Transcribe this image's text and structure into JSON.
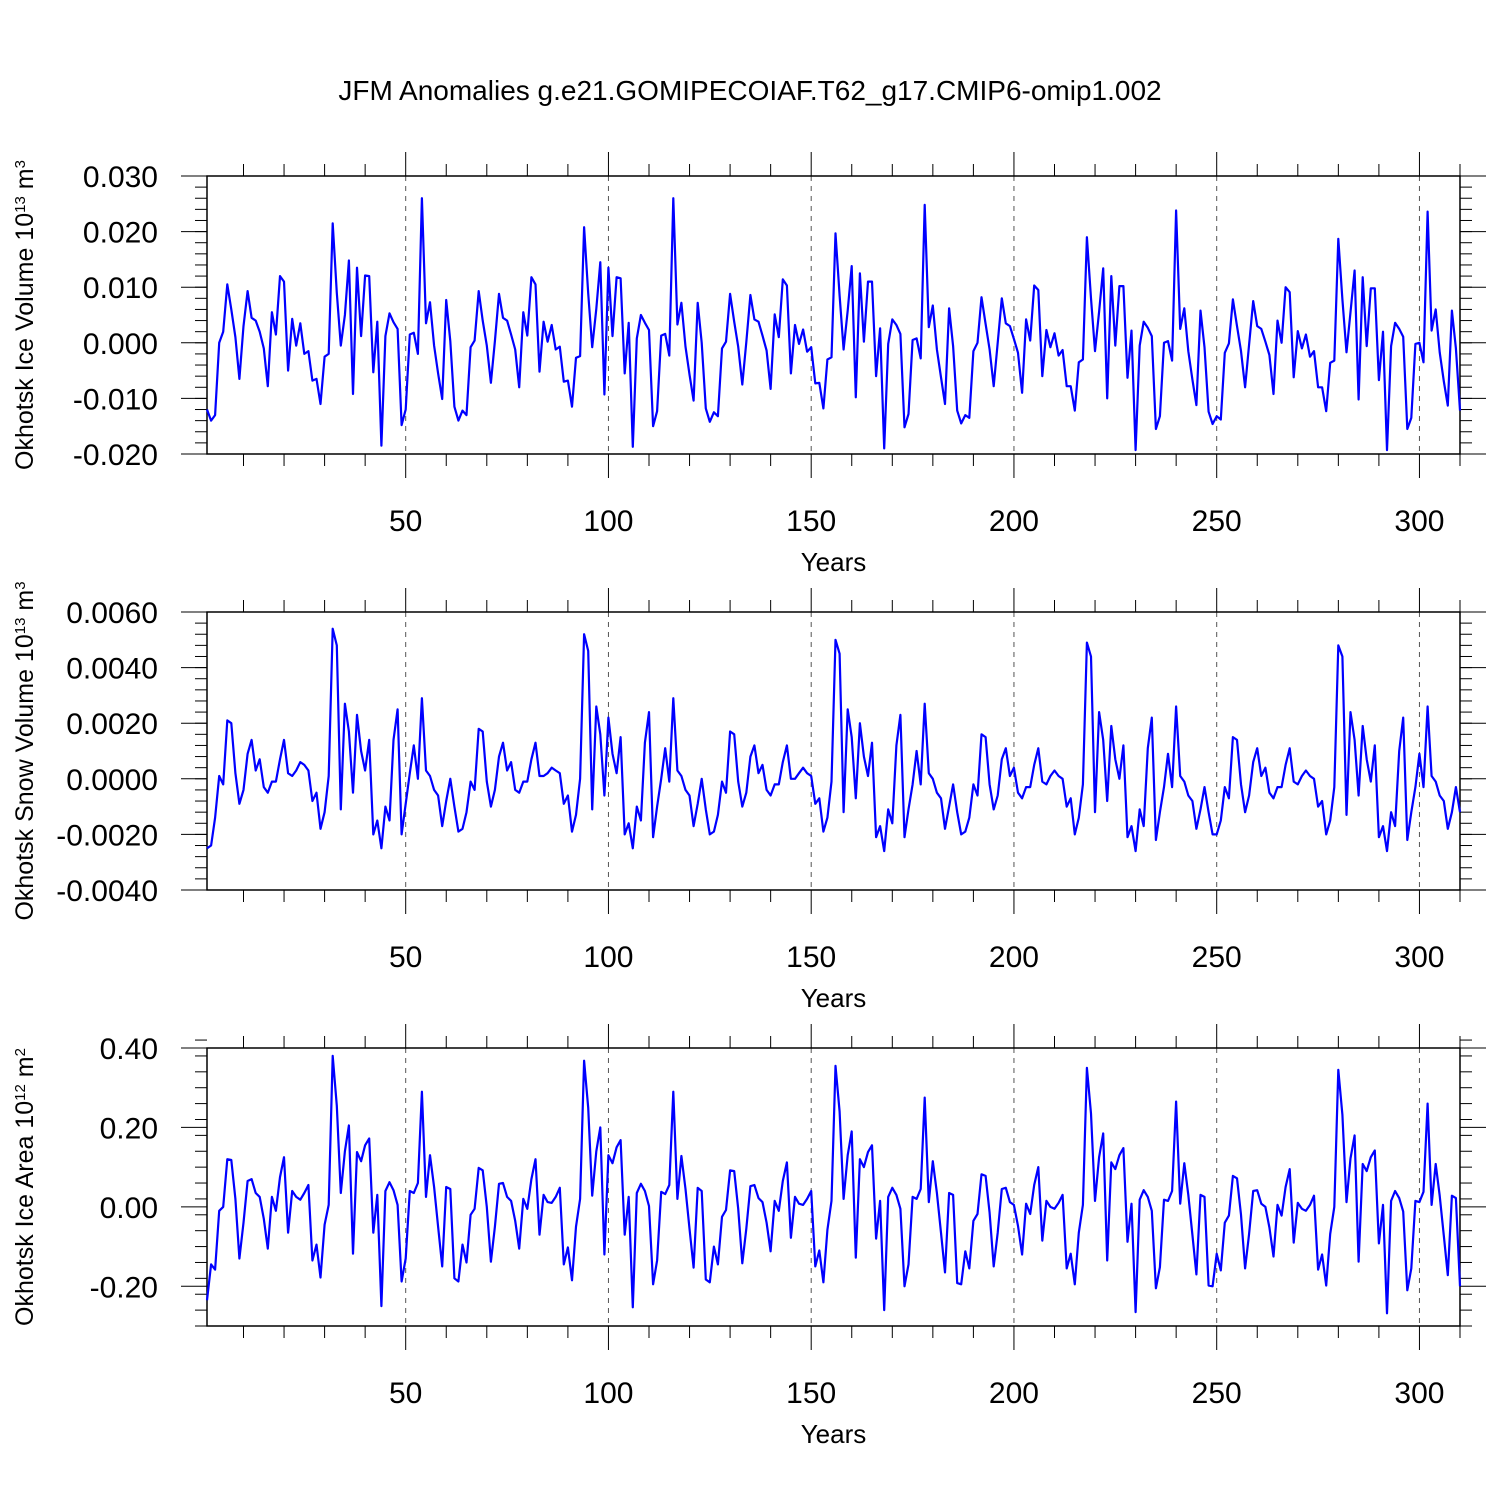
{
  "title": "JFM Anomalies g.e21.GOMIPECOIAF.T62_g17.CMIP6-omip1.002",
  "line_color": "#0000ff",
  "chart_data": [
    {
      "type": "line",
      "xlabel": "Years",
      "ylabel": {
        "prefix": "Okhotsk Ice Volume 10",
        "exp": "13",
        "suffix": " m",
        "unit_exp": "3"
      },
      "xlim": [
        1,
        310
      ],
      "ylim": [
        -0.02,
        0.03
      ],
      "grid": "dashed vertical lines at labeled x ticks",
      "x_ticks": [
        50,
        100,
        150,
        200,
        250,
        300
      ],
      "x_tick_labels": [
        "50",
        "100",
        "150",
        "200",
        "250",
        "300"
      ],
      "y_ticks": [
        -0.02,
        -0.01,
        0.0,
        0.01,
        0.02,
        0.03
      ],
      "y_tick_labels": [
        "-0.020",
        "-0.010",
        "0.000",
        "0.010",
        "0.020",
        "0.030"
      ],
      "x_start": 1,
      "values": [
        -0.012,
        -0.014,
        -0.013,
        0.0,
        0.002,
        0.0105,
        0.006,
        0.001,
        -0.0065,
        0.003,
        0.0093,
        0.0045,
        0.004,
        0.002,
        -0.001,
        -0.0078,
        0.0055,
        0.0015,
        0.012,
        0.011,
        -0.005,
        0.0043,
        -0.0005,
        0.0035,
        -0.002,
        -0.0015,
        -0.0068,
        -0.0065,
        -0.011,
        -0.0025,
        -0.002,
        0.0215,
        0.009,
        -0.0005,
        0.005,
        0.0148,
        -0.0092,
        0.0135,
        0.0012,
        0.0121,
        0.012,
        -0.0053,
        0.0038,
        -0.0185,
        0.0012,
        0.0053,
        0.0037,
        0.0025,
        -0.0148,
        -0.012,
        0.0015,
        0.0018,
        -0.002,
        0.026,
        0.0035,
        0.0073,
        -0.0005,
        -0.0055,
        -0.0101,
        0.0077,
        0.0003,
        -0.0115,
        -0.014,
        -0.0122,
        -0.013,
        -0.0008,
        0.0004,
        0.0093,
        0.004,
        -0.0005,
        -0.0072,
        0.0003,
        0.0088,
        0.0045,
        0.004,
        0.0015,
        -0.0012,
        -0.008,
        0.0055,
        0.0013,
        0.0118,
        0.0105,
        -0.0052,
        0.0038,
        0.0002,
        0.0032,
        -0.0012,
        -0.0007,
        -0.007,
        -0.0068,
        -0.0115,
        -0.0027,
        -0.0024,
        0.0208,
        0.0089,
        -0.0008,
        0.0061,
        0.0145,
        -0.0093,
        0.0135,
        0.0012,
        0.0118,
        0.0116,
        -0.0055,
        0.0036,
        -0.0187,
        0.0008,
        0.005,
        0.0036,
        0.0023,
        -0.015,
        -0.0123,
        0.0013,
        0.0016,
        -0.0023,
        0.026,
        0.0033,
        0.0072,
        -0.0007,
        -0.0057,
        -0.0104,
        0.0072,
        0.0,
        -0.0118,
        -0.0142,
        -0.0125,
        -0.0132,
        -0.001,
        0.0002,
        0.0088,
        0.0038,
        -0.0007,
        -0.0075,
        0.0001,
        0.0086,
        0.0042,
        0.0038,
        0.0013,
        -0.0014,
        -0.0083,
        0.0051,
        0.001,
        0.0114,
        0.0103,
        -0.0055,
        0.0032,
        -0.0002,
        0.0024,
        -0.0016,
        -0.0008,
        -0.0073,
        -0.0072,
        -0.0118,
        -0.003,
        -0.0026,
        0.0197,
        0.0085,
        -0.0012,
        0.0058,
        0.0138,
        -0.0098,
        0.0125,
        0.0002,
        0.011,
        0.011,
        -0.006,
        0.0026,
        -0.019,
        -0.0002,
        0.0042,
        0.0032,
        0.0016,
        -0.0152,
        -0.0128,
        0.0005,
        0.0008,
        -0.0028,
        0.0248,
        0.0028,
        0.0067,
        -0.0012,
        -0.0062,
        -0.011,
        0.0062,
        -0.0006,
        -0.0122,
        -0.0145,
        -0.013,
        -0.0135,
        -0.0015,
        0.0,
        0.0082,
        0.0034,
        -0.0012,
        -0.0078,
        0.0,
        0.008,
        0.0035,
        0.003,
        0.0007,
        -0.0018,
        -0.009,
        0.0042,
        0.0004,
        0.0103,
        0.0095,
        -0.006,
        0.0023,
        -0.0008,
        0.0017,
        -0.0023,
        -0.0013,
        -0.0078,
        -0.0078,
        -0.0122,
        -0.0035,
        -0.003,
        0.019,
        0.008,
        -0.0015,
        0.0056,
        0.0134,
        -0.01,
        0.012,
        -0.0005,
        0.0102,
        0.0102,
        -0.0063,
        0.0022,
        -0.0193,
        -0.0005,
        0.0038,
        0.0027,
        0.0012,
        -0.0155,
        -0.0132,
        0.0,
        0.0003,
        -0.0032,
        0.0238,
        0.0025,
        0.0062,
        -0.0015,
        -0.0066,
        -0.0112,
        0.0058,
        -0.0008,
        -0.0124,
        -0.0146,
        -0.0132,
        -0.0138,
        -0.0018,
        -0.0001,
        0.0078,
        0.003,
        -0.0015,
        -0.008,
        -0.0003,
        0.0075,
        0.003,
        0.0025,
        0.0002,
        -0.0022,
        -0.0092,
        0.004,
        0.0,
        0.01,
        0.0091,
        -0.0062,
        0.0021,
        -0.001,
        0.0015,
        -0.0025,
        -0.0015,
        -0.008,
        -0.008,
        -0.0123,
        -0.0036,
        -0.0032,
        0.0187,
        0.0078,
        -0.0017,
        0.0055,
        0.013,
        -0.0102,
        0.0118,
        -0.0006,
        0.0098,
        0.0098,
        -0.0067,
        0.002,
        -0.0193,
        -0.0006,
        0.0036,
        0.0025,
        0.0011,
        -0.0155,
        -0.0135,
        -0.0002,
        0.0,
        -0.0035,
        0.0236,
        0.0022,
        0.006,
        -0.0017,
        -0.0069,
        -0.0113,
        0.0058,
        -0.001,
        -0.0122
      ]
    },
    {
      "type": "line",
      "xlabel": "Years",
      "ylabel": {
        "prefix": "Okhotsk Snow Volume 10",
        "exp": "13",
        "suffix": " m",
        "unit_exp": "3"
      },
      "xlim": [
        1,
        310
      ],
      "ylim": [
        -0.004,
        0.006
      ],
      "grid": "dashed vertical lines at labeled x ticks",
      "x_ticks": [
        50,
        100,
        150,
        200,
        250,
        300
      ],
      "x_tick_labels": [
        "50",
        "100",
        "150",
        "200",
        "250",
        "300"
      ],
      "y_ticks": [
        -0.004,
        -0.002,
        0.0,
        0.002,
        0.004,
        0.006
      ],
      "y_tick_labels": [
        "-0.0040",
        "-0.0020",
        "0.0000",
        "0.0020",
        "0.0040",
        "0.0060"
      ],
      "x_start": 1,
      "values": [
        -0.0025,
        -0.0024,
        -0.0014,
        0.0001,
        -0.0002,
        0.0021,
        0.002,
        0.0002,
        -0.0009,
        -0.0004,
        0.0009,
        0.0014,
        0.0003,
        0.0007,
        -0.0003,
        -0.0005,
        -0.0001,
        -0.0001,
        0.0007,
        0.0014,
        0.0002,
        0.0001,
        0.0003,
        0.0006,
        0.0005,
        0.0003,
        -0.0008,
        -0.0005,
        -0.0018,
        -0.0012,
        0.0001,
        0.0054,
        0.0048,
        -0.0011,
        0.0027,
        0.0017,
        -0.0005,
        0.0023,
        0.001,
        0.0003,
        0.0014,
        -0.002,
        -0.0015,
        -0.0025,
        -0.001,
        -0.0015,
        0.0014,
        0.0025,
        -0.002,
        -0.0009,
        0.0002,
        0.0012,
        0.0,
        0.0029,
        0.0003,
        0.0001,
        -0.0004,
        -0.0006,
        -0.0017,
        -0.0008,
        0.0,
        -0.001,
        -0.0019,
        -0.0018,
        -0.0012,
        -0.0001,
        -0.0004,
        0.0018,
        0.0017,
        -0.0001,
        -0.001,
        -0.0004,
        0.0008,
        0.0013,
        0.0003,
        0.0006,
        -0.0004,
        -0.0005,
        -0.0001,
        -0.0001,
        0.0007,
        0.0013,
        0.0001,
        0.0001,
        0.0002,
        0.0004,
        0.0003,
        0.0002,
        -0.0009,
        -0.0006,
        -0.0019,
        -0.0013,
        0.0,
        0.0052,
        0.0046,
        -0.0011,
        0.0026,
        0.0016,
        -0.0006,
        0.0022,
        0.0009,
        0.0002,
        0.0015,
        -0.002,
        -0.0016,
        -0.0025,
        -0.001,
        -0.0015,
        0.0013,
        0.0024,
        -0.0021,
        -0.001,
        0.0,
        0.0011,
        -0.0001,
        0.0029,
        0.0003,
        0.0001,
        -0.0004,
        -0.0006,
        -0.0017,
        -0.0009,
        0.0,
        -0.0011,
        -0.002,
        -0.0019,
        -0.0013,
        -0.0001,
        -0.0005,
        0.0017,
        0.0016,
        -0.0001,
        -0.001,
        -0.0005,
        0.0008,
        0.0012,
        0.0002,
        0.0005,
        -0.0004,
        -0.0006,
        -0.0002,
        -0.0002,
        0.0006,
        0.0012,
        0.0,
        0.0,
        0.0002,
        0.0004,
        0.0002,
        0.0001,
        -0.0009,
        -0.0007,
        -0.0019,
        -0.0014,
        -0.0001,
        0.005,
        0.0045,
        -0.0012,
        0.0025,
        0.0015,
        -0.0007,
        0.002,
        0.0008,
        0.0001,
        0.0013,
        -0.0021,
        -0.0017,
        -0.0026,
        -0.0011,
        -0.0016,
        0.0012,
        0.0023,
        -0.0021,
        -0.0011,
        -0.0002,
        0.001,
        -0.0002,
        0.0027,
        0.0002,
        0.0,
        -0.0005,
        -0.0007,
        -0.0018,
        -0.001,
        -0.0002,
        -0.0012,
        -0.002,
        -0.0019,
        -0.0014,
        -0.0002,
        -0.0006,
        0.0016,
        0.0015,
        -0.0002,
        -0.0011,
        -0.0006,
        0.0007,
        0.0011,
        0.0001,
        0.0004,
        -0.0005,
        -0.0007,
        -0.0003,
        -0.0003,
        0.0005,
        0.0011,
        -0.0001,
        -0.0002,
        0.0001,
        0.0003,
        0.0001,
        0.0,
        -0.001,
        -0.0007,
        -0.002,
        -0.0014,
        -0.0002,
        0.0049,
        0.0044,
        -0.0012,
        0.0024,
        0.0014,
        -0.0008,
        0.0019,
        0.0007,
        0.0,
        0.0012,
        -0.0021,
        -0.0017,
        -0.0026,
        -0.0011,
        -0.0017,
        0.0011,
        0.0022,
        -0.0022,
        -0.0012,
        -0.0003,
        0.0009,
        -0.0003,
        0.0026,
        0.0001,
        -0.0001,
        -0.0006,
        -0.0008,
        -0.0018,
        -0.0011,
        -0.0003,
        -0.0012,
        -0.002,
        -0.002,
        -0.0015,
        -0.0003,
        -0.0007,
        0.0015,
        0.0014,
        -0.0002,
        -0.0012,
        -0.0006,
        0.0006,
        0.0011,
        0.0001,
        0.0004,
        -0.0005,
        -0.0007,
        -0.0003,
        -0.0003,
        0.0005,
        0.0011,
        -0.0001,
        -0.0002,
        0.0001,
        0.0003,
        0.0001,
        0.0,
        -0.001,
        -0.0008,
        -0.002,
        -0.0015,
        -0.0003,
        0.0048,
        0.0044,
        -0.0013,
        0.0024,
        0.0014,
        -0.0006,
        0.0019,
        0.0007,
        -0.0001,
        0.0012,
        -0.0021,
        -0.0017,
        -0.0026,
        -0.0012,
        -0.0017,
        0.001,
        0.0022,
        -0.0022,
        -0.0012,
        -0.0003,
        0.0009,
        -0.0003,
        0.0026,
        0.0001,
        -0.0001,
        -0.0006,
        -0.0008,
        -0.0018,
        -0.0012,
        -0.0003,
        -0.0012
      ]
    },
    {
      "type": "line",
      "xlabel": "Years",
      "ylabel": {
        "prefix": "Okhotsk Ice Area 10",
        "exp": "12",
        "suffix": " m",
        "unit_exp": "2"
      },
      "xlim": [
        1,
        310
      ],
      "ylim": [
        -0.3,
        0.4
      ],
      "grid": "dashed vertical lines at labeled x ticks",
      "x_ticks": [
        50,
        100,
        150,
        200,
        250,
        300
      ],
      "x_tick_labels": [
        "50",
        "100",
        "150",
        "200",
        "250",
        "300"
      ],
      "y_ticks": [
        -0.2,
        0.0,
        0.2,
        0.4
      ],
      "y_tick_labels": [
        "-0.20",
        "0.00",
        "0.20",
        "0.40"
      ],
      "x_start": 1,
      "values": [
        -0.235,
        -0.145,
        -0.158,
        -0.01,
        0.0,
        0.12,
        0.118,
        0.02,
        -0.13,
        -0.04,
        0.065,
        0.07,
        0.035,
        0.025,
        -0.03,
        -0.105,
        0.025,
        -0.01,
        0.075,
        0.125,
        -0.065,
        0.04,
        0.025,
        0.018,
        0.035,
        0.055,
        -0.135,
        -0.095,
        -0.178,
        -0.045,
        0.005,
        0.38,
        0.255,
        0.035,
        0.14,
        0.205,
        -0.118,
        0.138,
        0.115,
        0.155,
        0.172,
        -0.065,
        0.03,
        -0.25,
        0.04,
        0.062,
        0.042,
        0.005,
        -0.188,
        -0.13,
        0.04,
        0.035,
        0.06,
        0.29,
        0.025,
        0.13,
        0.05,
        -0.05,
        -0.15,
        0.05,
        0.045,
        -0.18,
        -0.188,
        -0.095,
        -0.14,
        -0.02,
        -0.005,
        0.098,
        0.092,
        0.0,
        -0.138,
        -0.05,
        0.058,
        0.06,
        0.025,
        0.015,
        -0.035,
        -0.105,
        0.02,
        -0.005,
        0.07,
        0.12,
        -0.07,
        0.03,
        0.012,
        0.01,
        0.025,
        0.048,
        -0.145,
        -0.102,
        -0.185,
        -0.05,
        0.02,
        0.368,
        0.25,
        0.028,
        0.14,
        0.2,
        -0.12,
        0.13,
        0.11,
        0.15,
        0.168,
        -0.07,
        0.025,
        -0.253,
        0.035,
        0.058,
        0.04,
        0.002,
        -0.195,
        -0.135,
        0.038,
        0.032,
        0.055,
        0.29,
        0.02,
        0.128,
        0.045,
        -0.055,
        -0.153,
        0.048,
        0.04,
        -0.183,
        -0.19,
        -0.1,
        -0.145,
        -0.025,
        -0.008,
        0.092,
        0.09,
        -0.005,
        -0.142,
        -0.055,
        0.052,
        0.055,
        0.022,
        0.012,
        -0.04,
        -0.112,
        0.015,
        -0.01,
        0.065,
        0.112,
        -0.078,
        0.025,
        0.008,
        0.005,
        0.02,
        0.04,
        -0.15,
        -0.11,
        -0.19,
        -0.058,
        0.015,
        0.355,
        0.24,
        0.02,
        0.13,
        0.19,
        -0.128,
        0.12,
        0.1,
        0.138,
        0.155,
        -0.08,
        0.015,
        -0.26,
        0.025,
        0.048,
        0.03,
        -0.005,
        -0.2,
        -0.145,
        0.025,
        0.02,
        0.045,
        0.275,
        0.012,
        0.115,
        0.035,
        -0.065,
        -0.165,
        0.035,
        0.03,
        -0.192,
        -0.195,
        -0.112,
        -0.155,
        -0.035,
        -0.018,
        0.082,
        0.078,
        -0.015,
        -0.15,
        -0.065,
        0.045,
        0.048,
        0.012,
        0.005,
        -0.048,
        -0.12,
        0.008,
        -0.018,
        0.055,
        0.1,
        -0.085,
        0.015,
        0.0,
        -0.005,
        0.01,
        0.03,
        -0.155,
        -0.118,
        -0.195,
        -0.065,
        0.005,
        0.35,
        0.235,
        0.015,
        0.125,
        0.185,
        -0.135,
        0.112,
        0.095,
        0.13,
        0.148,
        -0.088,
        0.008,
        -0.265,
        0.018,
        0.042,
        0.025,
        -0.01,
        -0.205,
        -0.152,
        0.018,
        0.015,
        0.04,
        0.265,
        0.008,
        0.11,
        0.03,
        -0.07,
        -0.17,
        0.03,
        0.025,
        -0.198,
        -0.2,
        -0.118,
        -0.16,
        -0.04,
        -0.022,
        0.078,
        0.072,
        -0.02,
        -0.155,
        -0.068,
        0.04,
        0.042,
        0.008,
        0.0,
        -0.052,
        -0.125,
        0.005,
        -0.022,
        0.05,
        0.095,
        -0.09,
        0.01,
        -0.005,
        -0.01,
        0.005,
        0.028,
        -0.158,
        -0.12,
        -0.198,
        -0.068,
        0.0,
        0.345,
        0.232,
        0.012,
        0.122,
        0.18,
        -0.138,
        0.108,
        0.09,
        0.125,
        0.142,
        -0.092,
        0.005,
        -0.268,
        0.015,
        0.04,
        0.022,
        -0.012,
        -0.21,
        -0.155,
        0.015,
        0.012,
        0.038,
        0.26,
        0.005,
        0.108,
        0.028,
        -0.072,
        -0.172,
        0.028,
        0.022,
        -0.2
      ]
    }
  ]
}
